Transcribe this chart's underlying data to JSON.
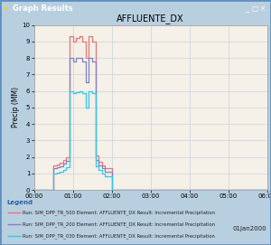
{
  "title": "AFFLUENTE_DX",
  "ylabel": "Precip (MM)",
  "xlim": [
    0,
    6
  ],
  "ylim": [
    0,
    10
  ],
  "xtick_labels": [
    "00:00",
    "01:00",
    "02:00",
    "03:00",
    "04:00",
    "05:00",
    "06:00"
  ],
  "ytick_labels": [
    "0",
    "1",
    "2",
    "3",
    "4",
    "5",
    "6",
    "7",
    "8",
    "9",
    "10"
  ],
  "outer_bg": "#b8cfe0",
  "plot_bg": "#f5f0e8",
  "titlebar_color": "#2060c0",
  "titlebar_text": "Graph Results",
  "border_color": "#6090c0",
  "grid_color": "#d0d8e0",
  "date_label": "01Jan2000",
  "series": [
    {
      "name": "Run: SIM_DPP_TR_500 Element: AFFLUENTE_DX Result: Incremental Precipitation",
      "color": "#e07878",
      "lw": 0.9,
      "data_x": [
        0.0,
        0.5,
        0.5,
        0.583,
        0.583,
        0.667,
        0.667,
        0.75,
        0.75,
        0.833,
        0.833,
        0.917,
        0.917,
        1.0,
        1.0,
        1.083,
        1.083,
        1.167,
        1.167,
        1.25,
        1.25,
        1.333,
        1.333,
        1.417,
        1.417,
        1.5,
        1.5,
        1.583,
        1.583,
        1.667,
        1.667,
        1.75,
        1.75,
        1.833,
        1.833,
        2.0,
        2.0,
        6.0
      ],
      "data_y": [
        0.0,
        0.0,
        1.5,
        1.5,
        1.55,
        1.55,
        1.65,
        1.65,
        1.8,
        1.8,
        2.0,
        2.0,
        9.3,
        9.3,
        9.0,
        9.0,
        9.2,
        9.2,
        9.3,
        9.3,
        9.0,
        9.0,
        8.0,
        8.0,
        9.3,
        9.3,
        9.0,
        9.0,
        2.1,
        2.1,
        1.7,
        1.7,
        1.5,
        1.5,
        1.3,
        1.3,
        0.0,
        0.0
      ]
    },
    {
      "name": "Run: SIM_DPP_TR_200 Element: AFFLUENTE_DX Result: Incremental Precipitation",
      "color": "#8080c8",
      "lw": 0.9,
      "data_x": [
        0.0,
        0.5,
        0.5,
        0.583,
        0.583,
        0.667,
        0.667,
        0.75,
        0.75,
        0.833,
        0.833,
        0.917,
        0.917,
        1.0,
        1.0,
        1.083,
        1.083,
        1.167,
        1.167,
        1.25,
        1.25,
        1.333,
        1.333,
        1.417,
        1.417,
        1.5,
        1.5,
        1.583,
        1.583,
        1.667,
        1.667,
        1.75,
        1.75,
        1.833,
        1.833,
        2.0,
        2.0,
        6.0
      ],
      "data_y": [
        0.0,
        0.0,
        1.3,
        1.3,
        1.35,
        1.35,
        1.45,
        1.45,
        1.6,
        1.6,
        1.75,
        1.75,
        8.0,
        8.0,
        7.8,
        7.8,
        8.0,
        8.0,
        8.0,
        8.0,
        7.8,
        7.8,
        6.5,
        6.5,
        8.0,
        8.0,
        7.8,
        7.8,
        1.8,
        1.8,
        1.5,
        1.5,
        1.3,
        1.3,
        1.1,
        1.1,
        0.0,
        0.0
      ]
    },
    {
      "name": "Run: SIM_DPP_TR_030 Element: AFFLUENTE_DX Result: Incremental Precipitation",
      "color": "#30c8e8",
      "lw": 0.9,
      "data_x": [
        0.0,
        0.5,
        0.5,
        0.583,
        0.583,
        0.667,
        0.667,
        0.75,
        0.75,
        0.833,
        0.833,
        0.917,
        0.917,
        1.0,
        1.0,
        1.083,
        1.083,
        1.167,
        1.167,
        1.25,
        1.25,
        1.333,
        1.333,
        1.417,
        1.417,
        1.5,
        1.5,
        1.583,
        1.583,
        1.667,
        1.667,
        1.75,
        1.75,
        1.833,
        1.833,
        2.0,
        2.0,
        6.0
      ],
      "data_y": [
        0.0,
        0.0,
        1.0,
        1.0,
        1.05,
        1.05,
        1.1,
        1.1,
        1.2,
        1.2,
        1.35,
        1.35,
        6.0,
        6.0,
        5.85,
        5.85,
        5.95,
        5.95,
        6.0,
        6.0,
        5.85,
        5.85,
        5.0,
        5.0,
        6.0,
        6.0,
        5.85,
        5.85,
        1.4,
        1.4,
        1.2,
        1.2,
        1.0,
        1.0,
        0.85,
        0.85,
        0.0,
        0.0
      ]
    }
  ],
  "legend_colors": [
    "#e07878",
    "#8080c8",
    "#30c8e8"
  ],
  "legend_labels": [
    "Run: SIM_DPP_TR_500 Element: AFFLUENTE_DX Result: Incremental Precipitation",
    "Run: SIM_DPP_TR_200 Element: AFFLUENTE_DX Result: Incremental Precipitation",
    "Run: SIM_DPP_TR_030 Element: AFFLUENTE_DX Result: Incremental Precipitation"
  ]
}
